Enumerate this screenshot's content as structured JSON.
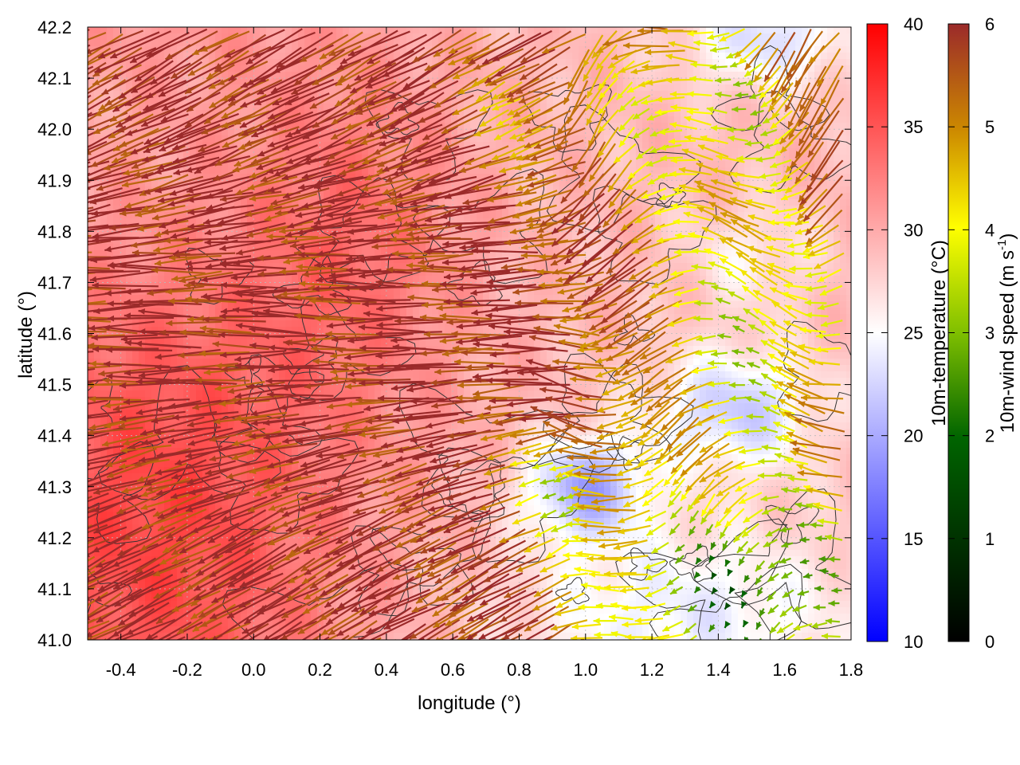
{
  "chart_data": {
    "type": "heatmap",
    "xlabel": "longitude (°)",
    "ylabel": "latitude (°)",
    "xlim": [
      -0.5,
      1.8
    ],
    "ylim": [
      41.0,
      42.2
    ],
    "xticks": [
      "-0.4",
      "-0.2",
      "0.0",
      "0.2",
      "0.4",
      "0.6",
      "0.8",
      "1.0",
      "1.2",
      "1.4",
      "1.6",
      "1.8"
    ],
    "xtick_values": [
      -0.4,
      -0.2,
      0.0,
      0.2,
      0.4,
      0.6,
      0.8,
      1.0,
      1.2,
      1.4,
      1.6,
      1.8
    ],
    "yticks": [
      "41.0",
      "41.1",
      "41.2",
      "41.3",
      "41.4",
      "41.5",
      "41.6",
      "41.7",
      "41.8",
      "41.9",
      "42.0",
      "42.1",
      "42.2"
    ],
    "ytick_values": [
      41.0,
      41.1,
      41.2,
      41.3,
      41.4,
      41.5,
      41.6,
      41.7,
      41.8,
      41.9,
      42.0,
      42.1,
      42.2
    ],
    "grid": true,
    "background_field": {
      "name": "10m-temperature (°C)",
      "range": [
        10,
        40
      ],
      "ticks": [
        "10",
        "15",
        "20",
        "25",
        "30",
        "35",
        "40"
      ],
      "tick_values": [
        10,
        15,
        20,
        25,
        30,
        35,
        40
      ],
      "colormap": [
        "#0000ff",
        "#ffffff",
        "#ff0000"
      ]
    },
    "vector_field": {
      "name": "10m-wind speed (m s-1)",
      "label_main": "10m-wind speed (m s",
      "label_sup": "-1",
      "label_end": ")",
      "range": [
        0,
        6
      ],
      "ticks": [
        "0",
        "1",
        "2",
        "3",
        "4",
        "5",
        "6"
      ],
      "tick_values": [
        0,
        1,
        2,
        3,
        4,
        5,
        6
      ],
      "colormap": [
        "#000000",
        "#006400",
        "#7fbf00",
        "#ffff00",
        "#cc8800",
        "#9b2a2a"
      ]
    },
    "contours": {
      "color": "#333333"
    }
  }
}
